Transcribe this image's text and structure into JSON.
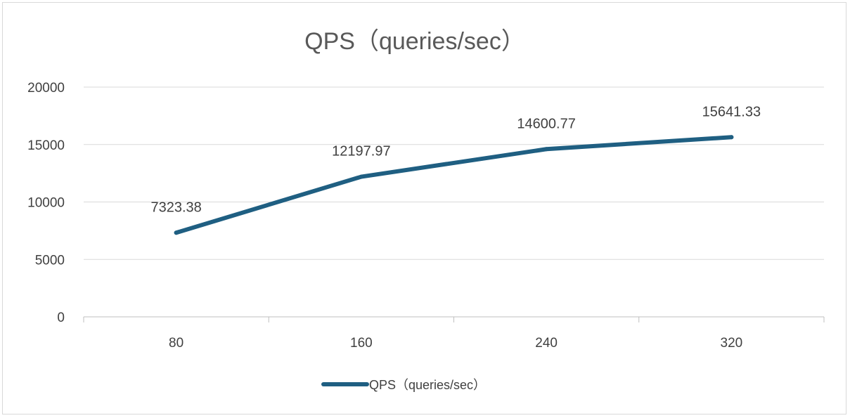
{
  "chart_data": {
    "type": "line",
    "title": "QPS（queries/sec）",
    "categories": [
      "80",
      "160",
      "240",
      "320"
    ],
    "series": [
      {
        "name": "QPS（queries/sec）",
        "values": [
          7323.38,
          12197.97,
          14600.77,
          15641.33
        ],
        "color": "#1f5f82"
      }
    ],
    "data_labels": [
      "7323.38",
      "12197.97",
      "14600.77",
      "15641.33"
    ],
    "y_ticks": [
      0,
      5000,
      10000,
      15000,
      20000
    ],
    "ylim": [
      0,
      20000
    ],
    "grid": true,
    "legend_position": "bottom",
    "colors": {
      "gridline": "#d9d9d9",
      "axis": "#bfbfbf"
    }
  }
}
